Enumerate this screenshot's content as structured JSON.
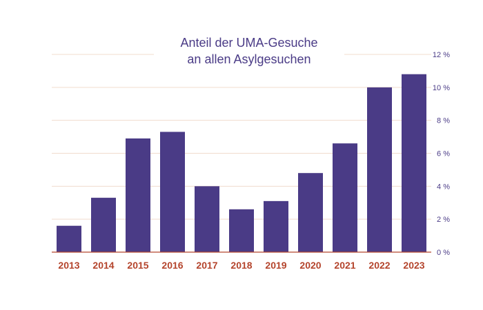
{
  "chart_data": {
    "type": "bar",
    "title_line1": "Anteil der UMA-Gesuche",
    "title_line2": "an allen Asylgesuchen",
    "categories": [
      "2013",
      "2014",
      "2015",
      "2016",
      "2017",
      "2018",
      "2019",
      "2020",
      "2021",
      "2022",
      "2023"
    ],
    "values": [
      1.6,
      3.3,
      6.9,
      7.3,
      4.0,
      2.6,
      3.1,
      4.8,
      6.6,
      10.0,
      10.8
    ],
    "ylim": [
      0,
      12
    ],
    "yticks": [
      {
        "value": 0,
        "label": "0 %"
      },
      {
        "value": 2,
        "label": "2 %"
      },
      {
        "value": 4,
        "label": "4 %"
      },
      {
        "value": 6,
        "label": "6 %"
      },
      {
        "value": 8,
        "label": "8 %"
      },
      {
        "value": 10,
        "label": "10 %"
      },
      {
        "value": 12,
        "label": "12 %"
      }
    ],
    "grid": true,
    "xlabel": "",
    "ylabel": "",
    "colors": {
      "bar": "#4a3b86",
      "title": "#4a3b86",
      "category_label": "#b4442c",
      "baseline": "#b4442c",
      "grid": "#f1dccd"
    }
  }
}
